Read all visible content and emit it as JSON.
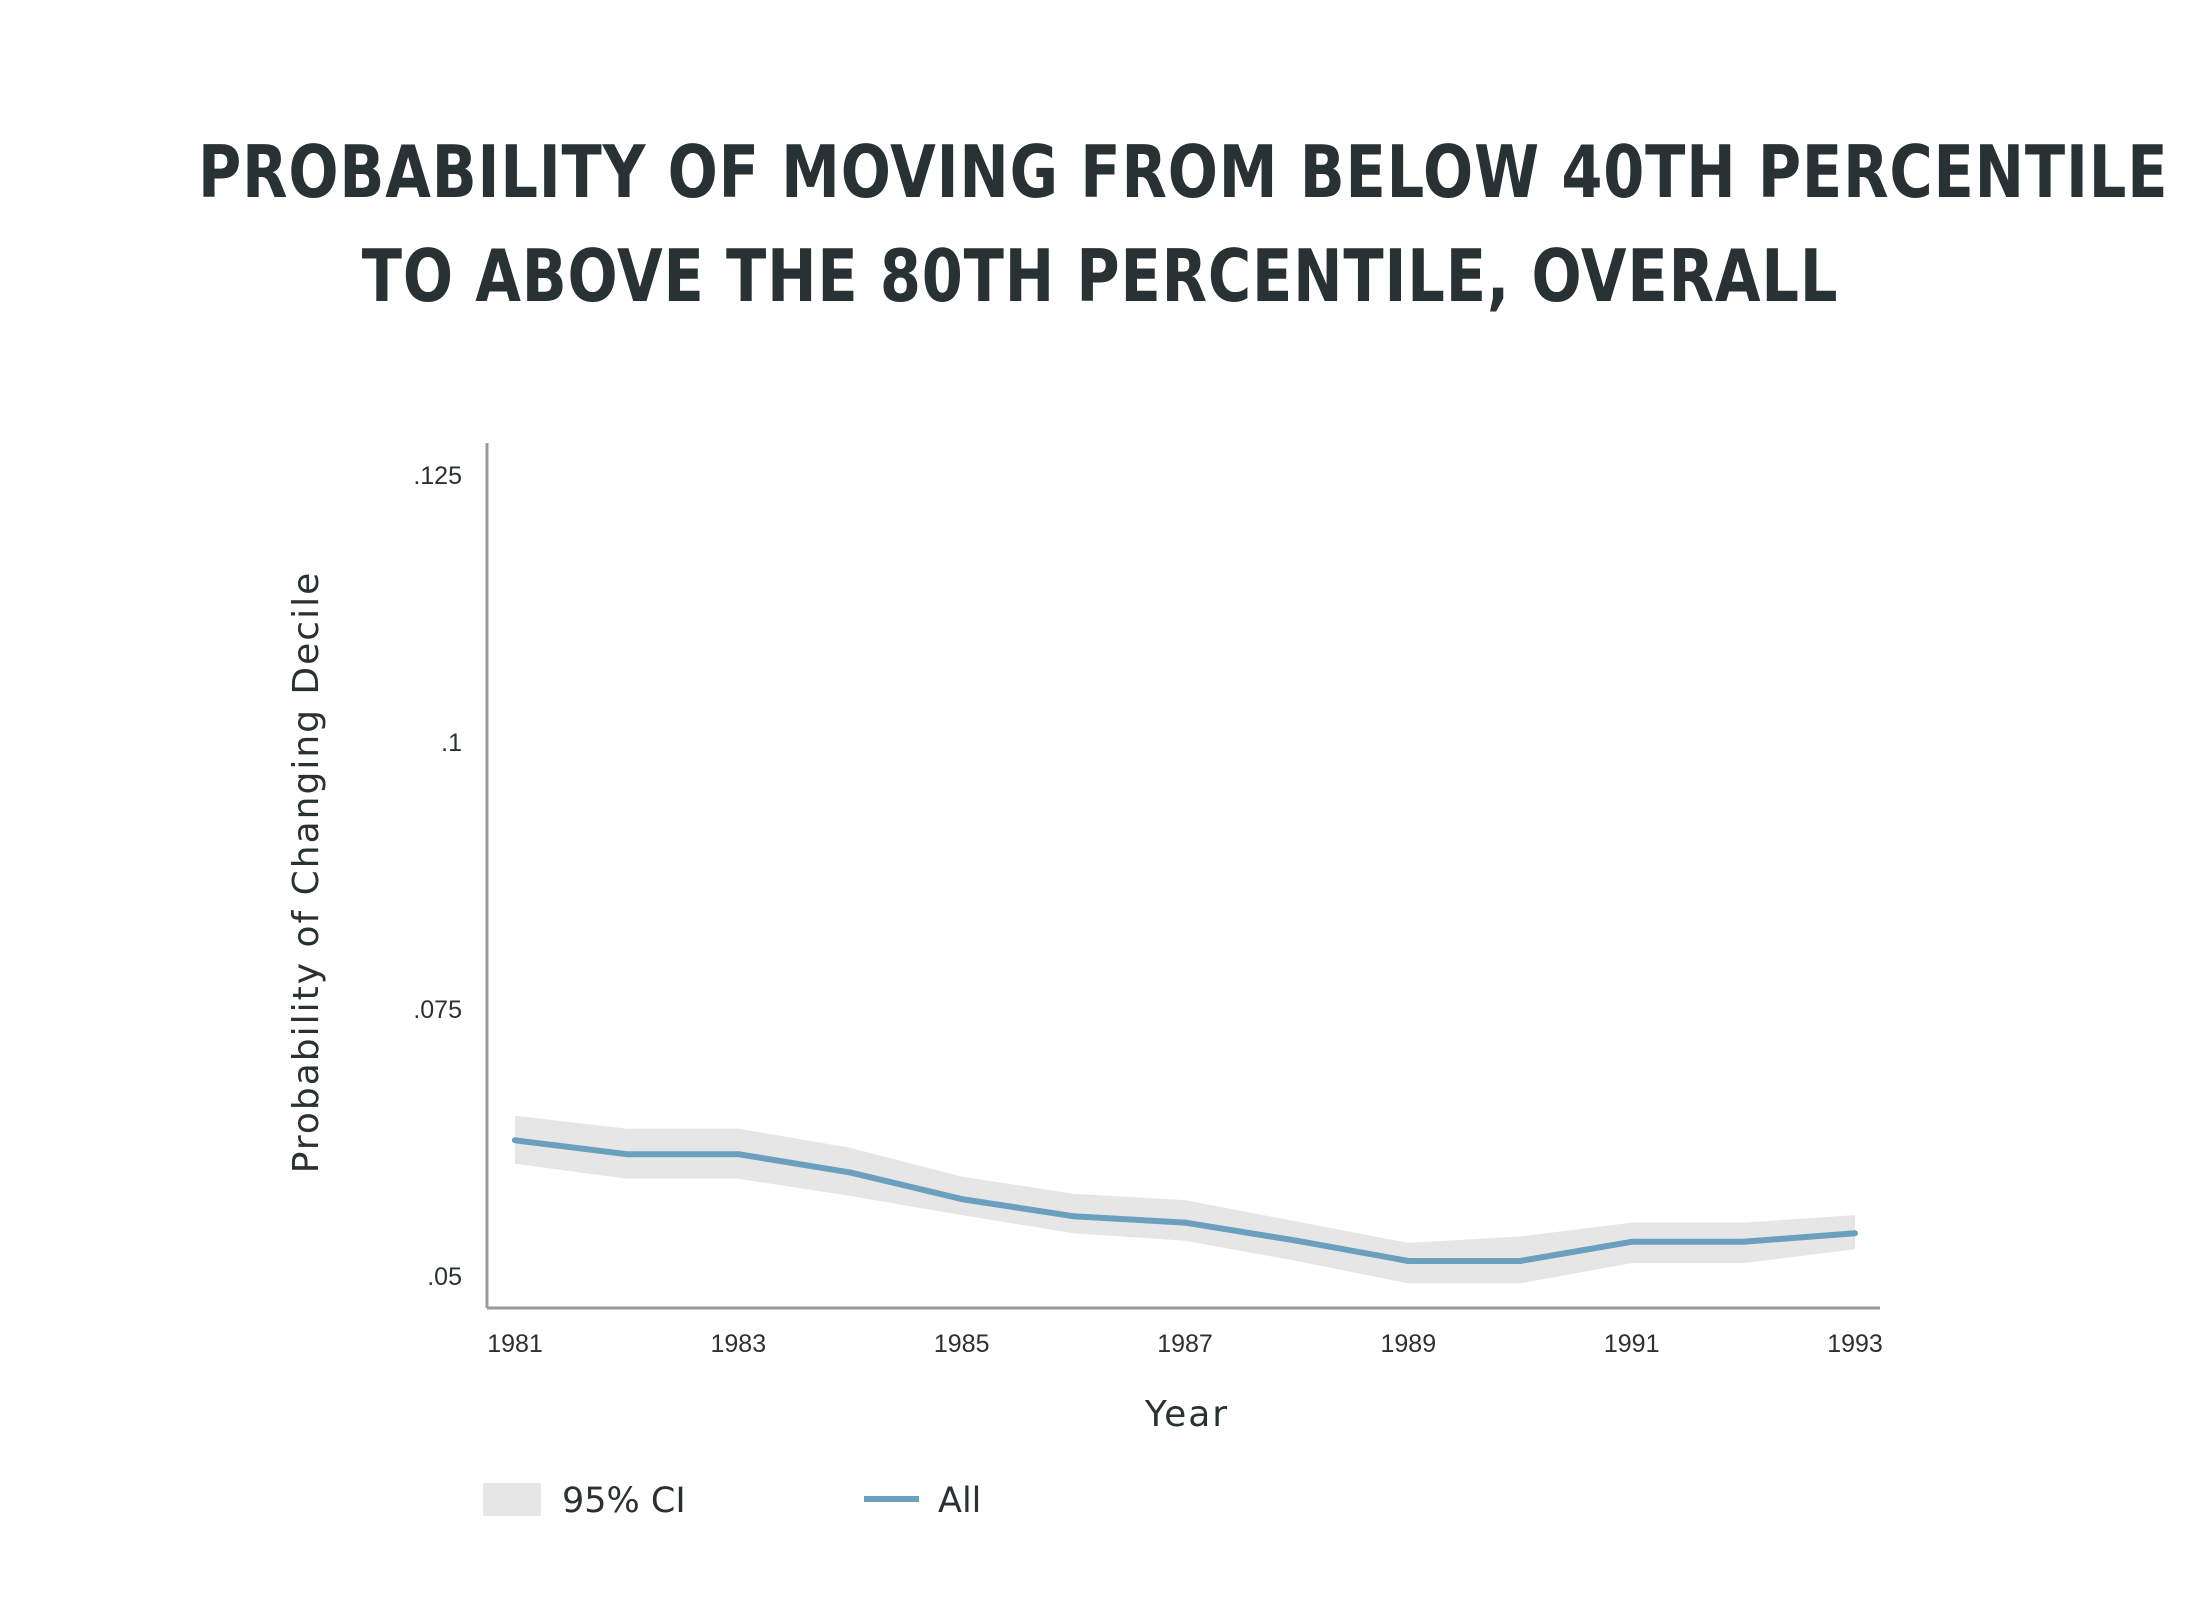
{
  "title_lines": [
    "PROBABILITY OF MOVING FROM BELOW 40TH PERCENTILE",
    "TO ABOVE THE 80TH PERCENTILE, OVERALL"
  ],
  "colors": {
    "line": "#6a9fbd",
    "ci_band": "#e6e6e6",
    "axis": "#9a9a9a",
    "text": "#2a3133"
  },
  "chart_data": {
    "type": "line",
    "title": "PROBABILITY OF MOVING FROM BELOW 40TH PERCENTILE TO ABOVE THE 80TH PERCENTILE, OVERALL",
    "xlabel": "Year",
    "ylabel": "Probability of Changing Decile",
    "x": [
      1981,
      1982,
      1983,
      1984,
      1985,
      1986,
      1987,
      1988,
      1989,
      1990,
      1991,
      1992,
      1993
    ],
    "xlim": [
      1981,
      1993
    ],
    "x_ticks": [
      1981,
      1983,
      1985,
      1987,
      1989,
      1991,
      1993
    ],
    "x_tick_labels": [
      "1981",
      "1983",
      "1985",
      "1987",
      "1989",
      "1991",
      "1993"
    ],
    "ylim": [
      0.047,
      0.128
    ],
    "y_ticks": [
      0.05,
      0.075,
      0.1,
      0.125
    ],
    "y_tick_labels": [
      ".05",
      ".075",
      ".1",
      ".125"
    ],
    "series": [
      {
        "name": "All",
        "values": [
          0.0627,
          0.0614,
          0.0614,
          0.0597,
          0.0572,
          0.0556,
          0.055,
          0.0533,
          0.0514,
          0.0514,
          0.0532,
          0.0532,
          0.054
        ]
      }
    ],
    "ci": {
      "name": "95% CI",
      "upper": [
        0.065,
        0.0638,
        0.0638,
        0.062,
        0.0593,
        0.0577,
        0.0571,
        0.0551,
        0.0531,
        0.0537,
        0.055,
        0.055,
        0.0557
      ],
      "lower": [
        0.0605,
        0.0591,
        0.0591,
        0.0575,
        0.0557,
        0.054,
        0.0533,
        0.0514,
        0.0493,
        0.0493,
        0.0512,
        0.0512,
        0.0525
      ]
    },
    "legend": {
      "placement": "bottom-left",
      "items": [
        "95% CI",
        "All"
      ]
    },
    "grid": false
  }
}
